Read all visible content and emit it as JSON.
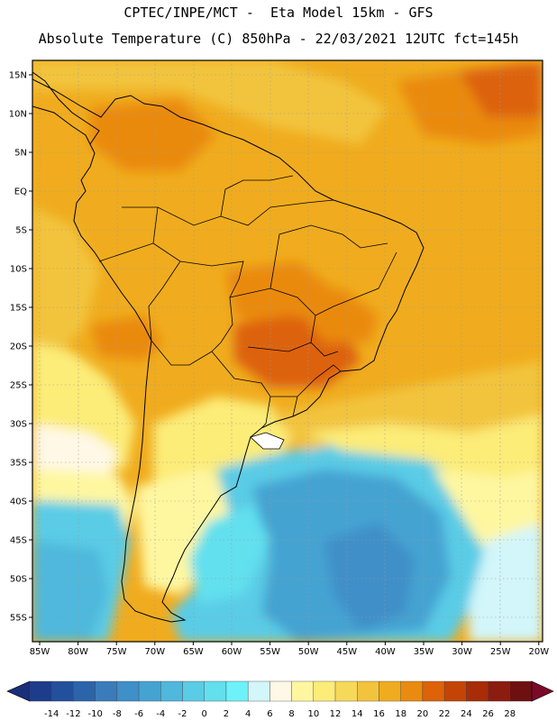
{
  "header": {
    "line1": "CPTEC/INPE/MCT -  Eta Model 15km - GFS",
    "line2": "Absolute Temperature (C) 850hPa - 22/03/2021 12UTC fct=145h"
  },
  "axes": {
    "lat_labels": [
      "15N",
      "10N",
      "5N",
      "EQ",
      "5S",
      "10S",
      "15S",
      "20S",
      "25S",
      "30S",
      "35S",
      "40S",
      "45S",
      "50S",
      "55S"
    ],
    "lon_labels": [
      "85W",
      "80W",
      "75W",
      "70W",
      "65W",
      "60W",
      "55W",
      "50W",
      "45W",
      "40W",
      "35W",
      "30W",
      "25W",
      "20W"
    ]
  },
  "colorbar": {
    "ticks": [
      "-14",
      "-12",
      "-10",
      "-8",
      "-6",
      "-4",
      "-2",
      "0",
      "2",
      "4",
      "6",
      "8",
      "10",
      "12",
      "14",
      "16",
      "18",
      "20",
      "22",
      "24",
      "26",
      "28"
    ],
    "colors": [
      "#1e3c8c",
      "#23509c",
      "#2c64aa",
      "#3a7cbb",
      "#3f8fc8",
      "#45a3d2",
      "#4fb8dc",
      "#5acce6",
      "#62e0ee",
      "#6cf2f8",
      "#d2f6fa",
      "#fff8e6",
      "#fef7a0",
      "#fcec78",
      "#f7d95a",
      "#f2c43e",
      "#f0ac1e",
      "#ea8a10",
      "#dd6208",
      "#c44408",
      "#a82c08",
      "#8a1c10",
      "#6e1010"
    ],
    "end_left_color": "#1a2e7a",
    "end_right_color": "#7a0a28"
  }
}
